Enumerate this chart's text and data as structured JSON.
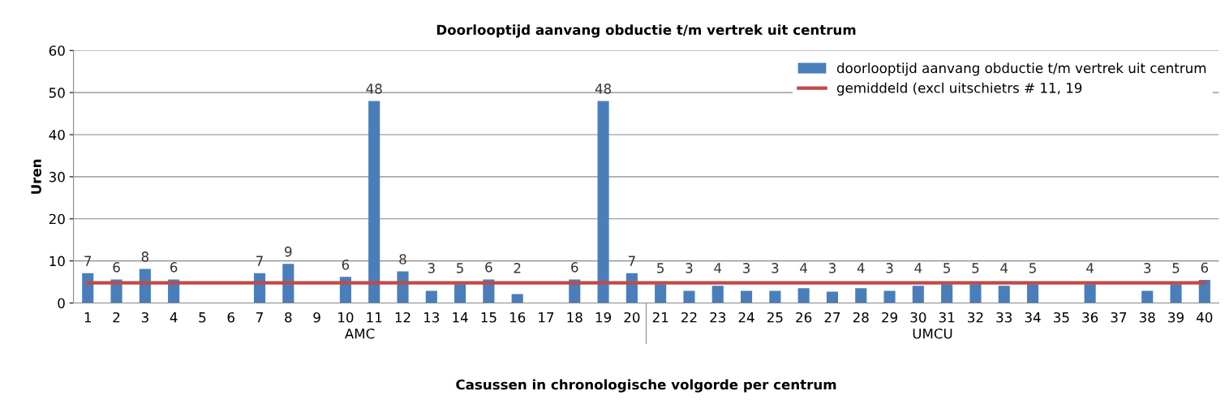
{
  "chart_data": {
    "type": "bar",
    "title": "Doorlooptijd aanvang obductie t/m vertrek uit centrum",
    "xlabel": "Casussen in chronologische volgorde per centrum",
    "ylabel": "Uren",
    "categories": [
      "1",
      "2",
      "3",
      "4",
      "5",
      "6",
      "7",
      "8",
      "9",
      "10",
      "11",
      "12",
      "13",
      "14",
      "15",
      "16",
      "17",
      "18",
      "19",
      "20",
      "21",
      "22",
      "23",
      "24",
      "25",
      "26",
      "27",
      "28",
      "29",
      "30",
      "31",
      "32",
      "33",
      "34",
      "35",
      "36",
      "37",
      "38",
      "39",
      "40"
    ],
    "series": [
      {
        "name": "doorlooptijd aanvang obductie t/m vertrek uit centrum",
        "color": "#4a7ebb",
        "values": [
          7.1,
          5.6,
          8.1,
          5.6,
          null,
          null,
          7.1,
          9.3,
          null,
          6.2,
          48,
          7.5,
          2.9,
          4.5,
          5.6,
          2.1,
          null,
          5.6,
          48,
          7.1,
          4.5,
          2.9,
          4.1,
          2.9,
          2.9,
          3.5,
          2.7,
          3.5,
          2.9,
          4.1,
          4.5,
          4.5,
          4.1,
          4.5,
          null,
          4.5,
          null,
          2.9,
          4.5,
          5.5
        ],
        "value_labels": [
          "7",
          "6",
          "8",
          "6",
          null,
          null,
          "7",
          "9",
          null,
          "6",
          "48",
          "8",
          "3",
          "5",
          "6",
          "2",
          null,
          "6",
          "48",
          "7",
          "5",
          "3",
          "4",
          "3",
          "3",
          "4",
          "3",
          "4",
          "3",
          "4",
          "5",
          "5",
          "4",
          "5",
          null,
          "4",
          null,
          "3",
          "5",
          "6"
        ]
      },
      {
        "name": "gemiddeld (excl uitschietrs # 11, 19",
        "type": "line",
        "color": "#be4b48",
        "values": [
          4.8,
          4.8,
          4.8,
          4.8,
          4.8,
          4.8,
          4.8,
          4.8,
          4.8,
          4.8,
          4.8,
          4.8,
          4.8,
          4.8,
          4.8,
          4.8,
          4.8,
          4.8,
          4.8,
          4.8,
          4.8,
          4.8,
          4.8,
          4.8,
          4.8,
          4.8,
          4.8,
          4.8,
          4.8,
          4.8,
          4.8,
          4.8,
          4.8,
          4.8,
          4.8,
          4.8,
          4.8,
          4.8,
          4.8,
          4.8
        ]
      }
    ],
    "annotations": [
      "AMC",
      "UMCU"
    ],
    "ylim": [
      0,
      60
    ],
    "yticks": [
      0,
      10,
      20,
      30,
      40,
      50,
      60
    ],
    "grid": "y",
    "legend": "top right",
    "marker": "none"
  }
}
